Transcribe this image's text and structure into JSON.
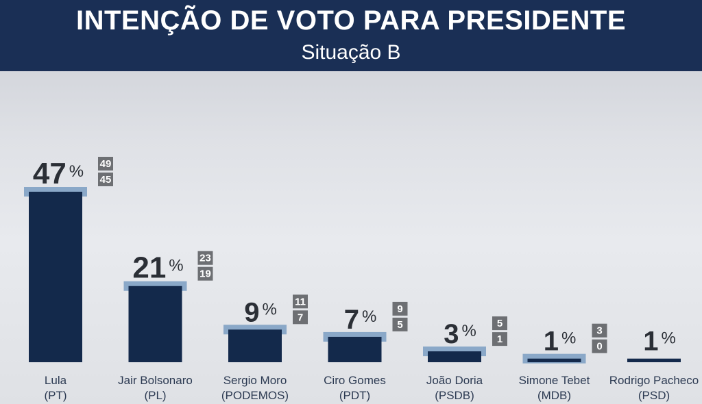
{
  "header": {
    "title": "INTENÇÃO DE VOTO PARA PRESIDENTE",
    "subtitle": "Situação B"
  },
  "colors": {
    "header_bg": "#1a2f55",
    "bar": "#13294b",
    "margin_band": "#8aa8c8",
    "range_box": "#6d6f73"
  },
  "chart_data": {
    "type": "bar",
    "title": "INTENÇÃO DE VOTO PARA PRESIDENTE",
    "subtitle": "Situação B",
    "unit": "%",
    "ylim": [
      0,
      47
    ],
    "grid": false,
    "categories": [
      "Lula",
      "Jair Bolsonaro",
      "Sergio Moro",
      "Ciro Gomes",
      "João Doria",
      "Simone Tebet",
      "Rodrigo Pacheco"
    ],
    "parties": [
      "(PT)",
      "(PL)",
      "(PODEMOS)",
      "(PDT)",
      "(PSDB)",
      "(MDB)",
      "(PSD)"
    ],
    "values": [
      47,
      21,
      9,
      7,
      3,
      1,
      1
    ],
    "upper": [
      49,
      23,
      11,
      9,
      5,
      3,
      null
    ],
    "lower": [
      45,
      19,
      7,
      5,
      1,
      0,
      null
    ]
  }
}
